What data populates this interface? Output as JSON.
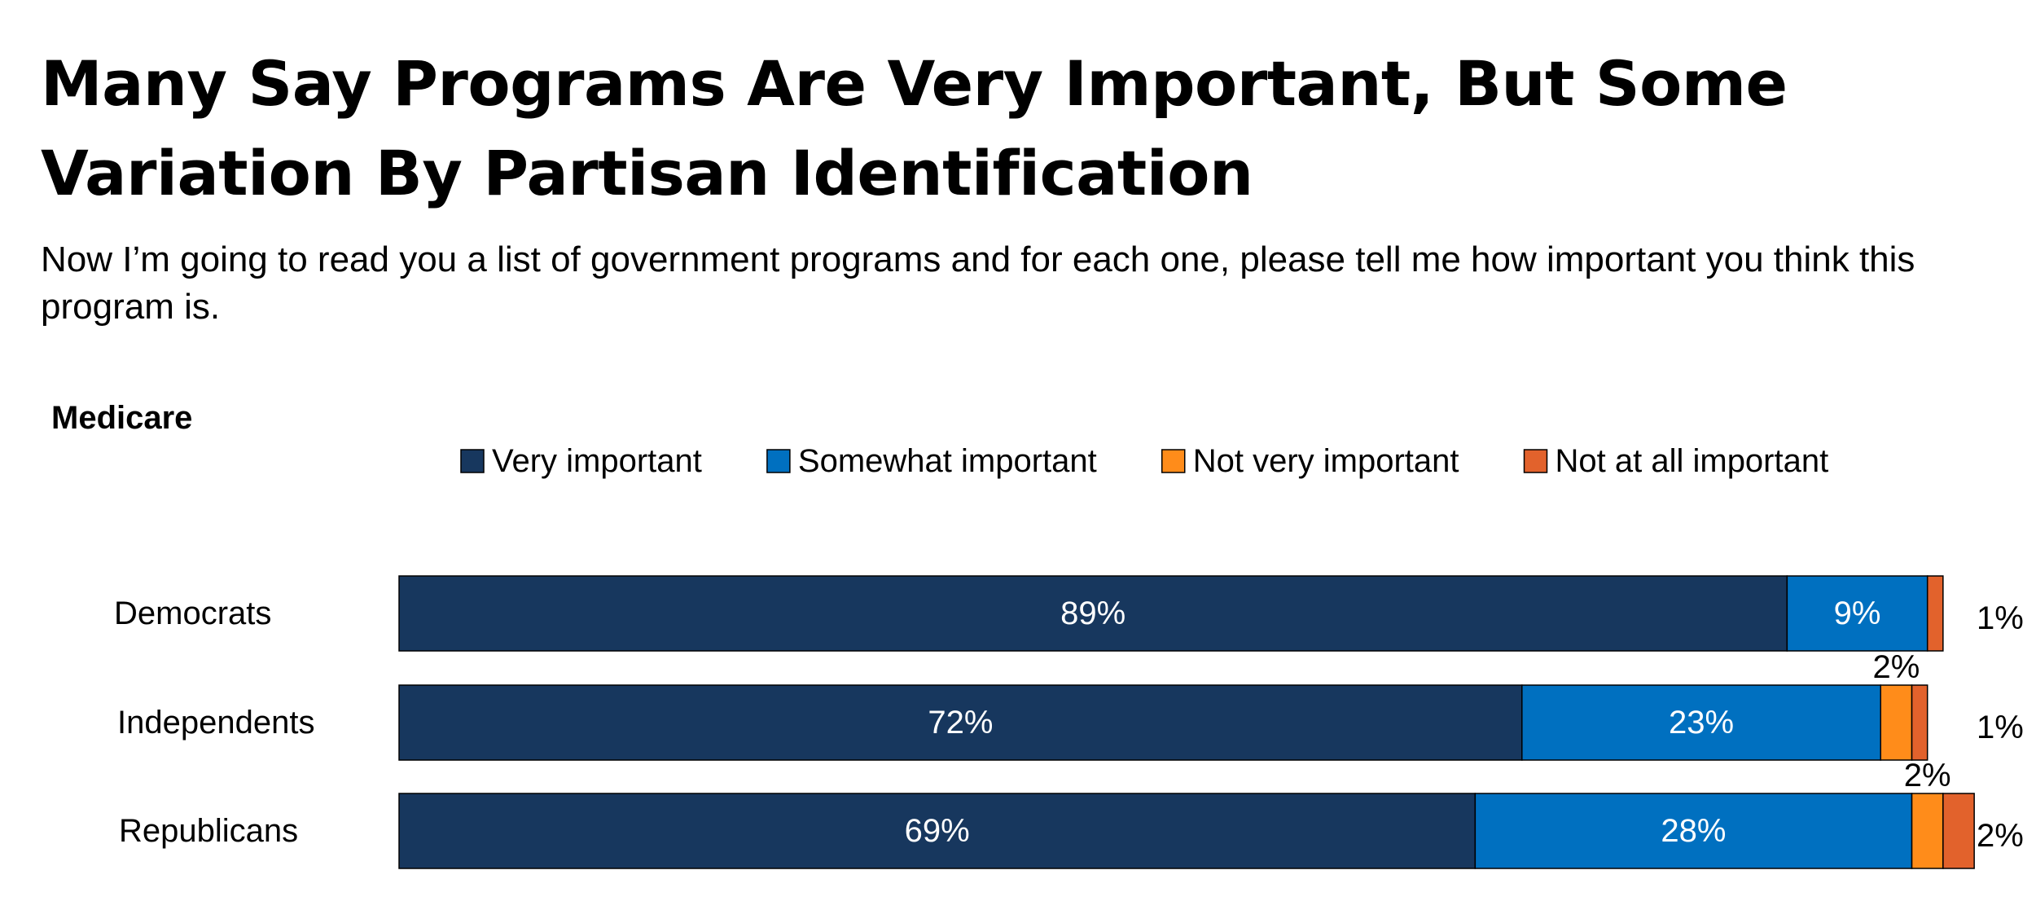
{
  "header": {
    "title": "Many Say Programs Are Very Important, But Some Variation By Partisan Identification",
    "subtitle": "Now I’m going to read you a list of government programs and for each one, please tell me how important you think this program is.",
    "section_label": "Medicare"
  },
  "chart_data": {
    "type": "bar",
    "orientation": "horizontal",
    "stacked": true,
    "title": "",
    "xlabel": "",
    "ylabel": "",
    "xlim": [
      0,
      100
    ],
    "grid": false,
    "legend_position": "top",
    "categories": [
      "Democrats",
      "Independents",
      "Republicans"
    ],
    "series": [
      {
        "name": "Very important",
        "color": "#17375E",
        "values": [
          89,
          72,
          69
        ],
        "labels": [
          "89%",
          "72%",
          "69%"
        ]
      },
      {
        "name": "Somewhat important",
        "color": "#0070C0",
        "values": [
          9,
          23,
          28
        ],
        "labels": [
          "9%",
          "23%",
          "28%"
        ]
      },
      {
        "name": "Not very important",
        "color": "#FF8C1A",
        "values": [
          0,
          2,
          2
        ],
        "labels": [
          "",
          "2%",
          "2%"
        ]
      },
      {
        "name": "Not at all important",
        "color": "#E2622C",
        "values": [
          1,
          1,
          2
        ],
        "labels": [
          "1%",
          "1%",
          "2%"
        ]
      }
    ]
  }
}
